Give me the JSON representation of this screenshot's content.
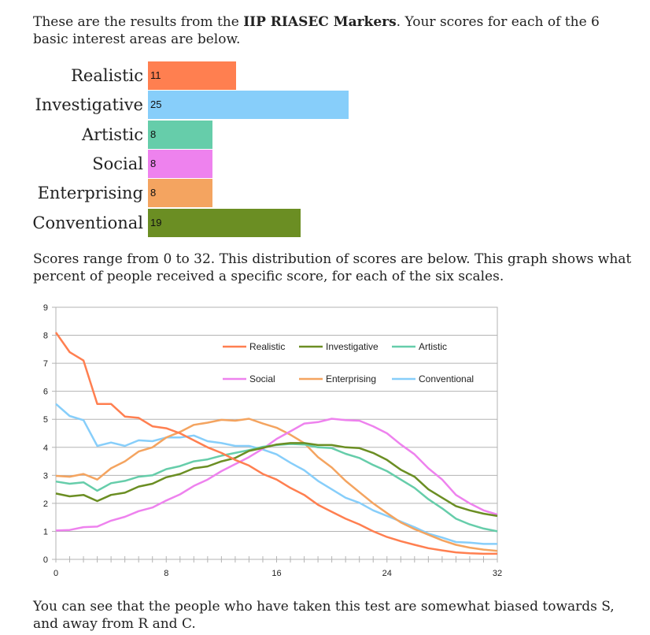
{
  "intro": {
    "before": "These are the results from the ",
    "bold": "IIP RIASEC Markers",
    "after": ". Your scores for each of the 6 basic interest areas are below."
  },
  "range_text": "Scores range from 0 to 32. This distribution of scores are below. This graph shows what percent of people received a specific score, for each of the six scales.",
  "outro_text": "You can see that the people who have taken this test are somewhat biased towards S, and away from R and C.",
  "chart_data": [
    {
      "type": "bar",
      "orientation": "horizontal",
      "categories": [
        "Realistic",
        "Investigative",
        "Artistic",
        "Social",
        "Enterprising",
        "Conventional"
      ],
      "values": [
        11,
        25,
        8,
        8,
        8,
        19
      ],
      "colors": [
        "#ff7f50",
        "#87cefa",
        "#66cdaa",
        "#ee82ee",
        "#f4a460",
        "#6b8e23"
      ],
      "xlim": [
        0,
        32
      ]
    },
    {
      "type": "line",
      "x": [
        0,
        1,
        2,
        3,
        4,
        5,
        6,
        7,
        8,
        9,
        10,
        11,
        12,
        13,
        14,
        15,
        16,
        17,
        18,
        19,
        20,
        21,
        22,
        23,
        24,
        25,
        26,
        27,
        28,
        29,
        30,
        31,
        32
      ],
      "xlim": [
        0,
        32
      ],
      "ylim": [
        0,
        9
      ],
      "xticks": [
        0,
        8,
        16,
        24,
        32
      ],
      "yticks": [
        0,
        1,
        2,
        3,
        4,
        5,
        6,
        7,
        8,
        9
      ],
      "grid": true,
      "legend_position": "top-right",
      "series": [
        {
          "name": "Realistic",
          "color": "#ff7f50",
          "values": [
            8.1,
            7.4,
            7.1,
            5.55,
            5.55,
            5.1,
            5.05,
            4.75,
            4.68,
            4.5,
            4.25,
            4.0,
            3.8,
            3.55,
            3.35,
            3.05,
            2.85,
            2.55,
            2.3,
            1.95,
            1.7,
            1.45,
            1.25,
            1.0,
            0.8,
            0.65,
            0.52,
            0.4,
            0.32,
            0.25,
            0.22,
            0.2,
            0.2
          ]
        },
        {
          "name": "Investigative",
          "color": "#6b8e23",
          "values": [
            2.35,
            2.25,
            2.3,
            2.08,
            2.3,
            2.38,
            2.6,
            2.7,
            2.93,
            3.05,
            3.25,
            3.32,
            3.5,
            3.62,
            3.87,
            3.98,
            4.1,
            4.15,
            4.15,
            4.08,
            4.08,
            4.0,
            3.97,
            3.8,
            3.55,
            3.2,
            2.95,
            2.5,
            2.2,
            1.9,
            1.75,
            1.63,
            1.55
          ]
        },
        {
          "name": "Artistic",
          "color": "#66cdaa",
          "values": [
            2.78,
            2.7,
            2.75,
            2.45,
            2.72,
            2.8,
            2.95,
            3.0,
            3.22,
            3.33,
            3.5,
            3.57,
            3.7,
            3.8,
            3.9,
            4.02,
            4.08,
            4.12,
            4.1,
            4.0,
            3.97,
            3.77,
            3.62,
            3.37,
            3.15,
            2.85,
            2.55,
            2.15,
            1.82,
            1.45,
            1.25,
            1.1,
            1.0
          ]
        },
        {
          "name": "Social",
          "color": "#ee82ee",
          "values": [
            1.03,
            1.05,
            1.15,
            1.17,
            1.38,
            1.52,
            1.72,
            1.85,
            2.1,
            2.32,
            2.62,
            2.85,
            3.15,
            3.4,
            3.65,
            3.95,
            4.3,
            4.57,
            4.85,
            4.9,
            5.02,
            4.97,
            4.95,
            4.75,
            4.5,
            4.1,
            3.75,
            3.25,
            2.85,
            2.3,
            2.0,
            1.75,
            1.6
          ]
        },
        {
          "name": "Enterprising",
          "color": "#f4a460",
          "values": [
            2.98,
            2.95,
            3.05,
            2.85,
            3.25,
            3.5,
            3.85,
            4.0,
            4.35,
            4.55,
            4.8,
            4.88,
            4.98,
            4.95,
            5.02,
            4.85,
            4.7,
            4.45,
            4.15,
            3.65,
            3.28,
            2.8,
            2.4,
            2.0,
            1.65,
            1.32,
            1.08,
            0.88,
            0.68,
            0.52,
            0.42,
            0.35,
            0.3
          ]
        },
        {
          "name": "Conventional",
          "color": "#87cefa",
          "values": [
            5.55,
            5.12,
            4.97,
            4.05,
            4.17,
            4.05,
            4.25,
            4.22,
            4.35,
            4.35,
            4.42,
            4.22,
            4.15,
            4.05,
            4.05,
            3.92,
            3.75,
            3.45,
            3.18,
            2.8,
            2.5,
            2.2,
            2.02,
            1.75,
            1.55,
            1.35,
            1.15,
            0.92,
            0.78,
            0.62,
            0.6,
            0.55,
            0.55
          ]
        }
      ]
    }
  ]
}
